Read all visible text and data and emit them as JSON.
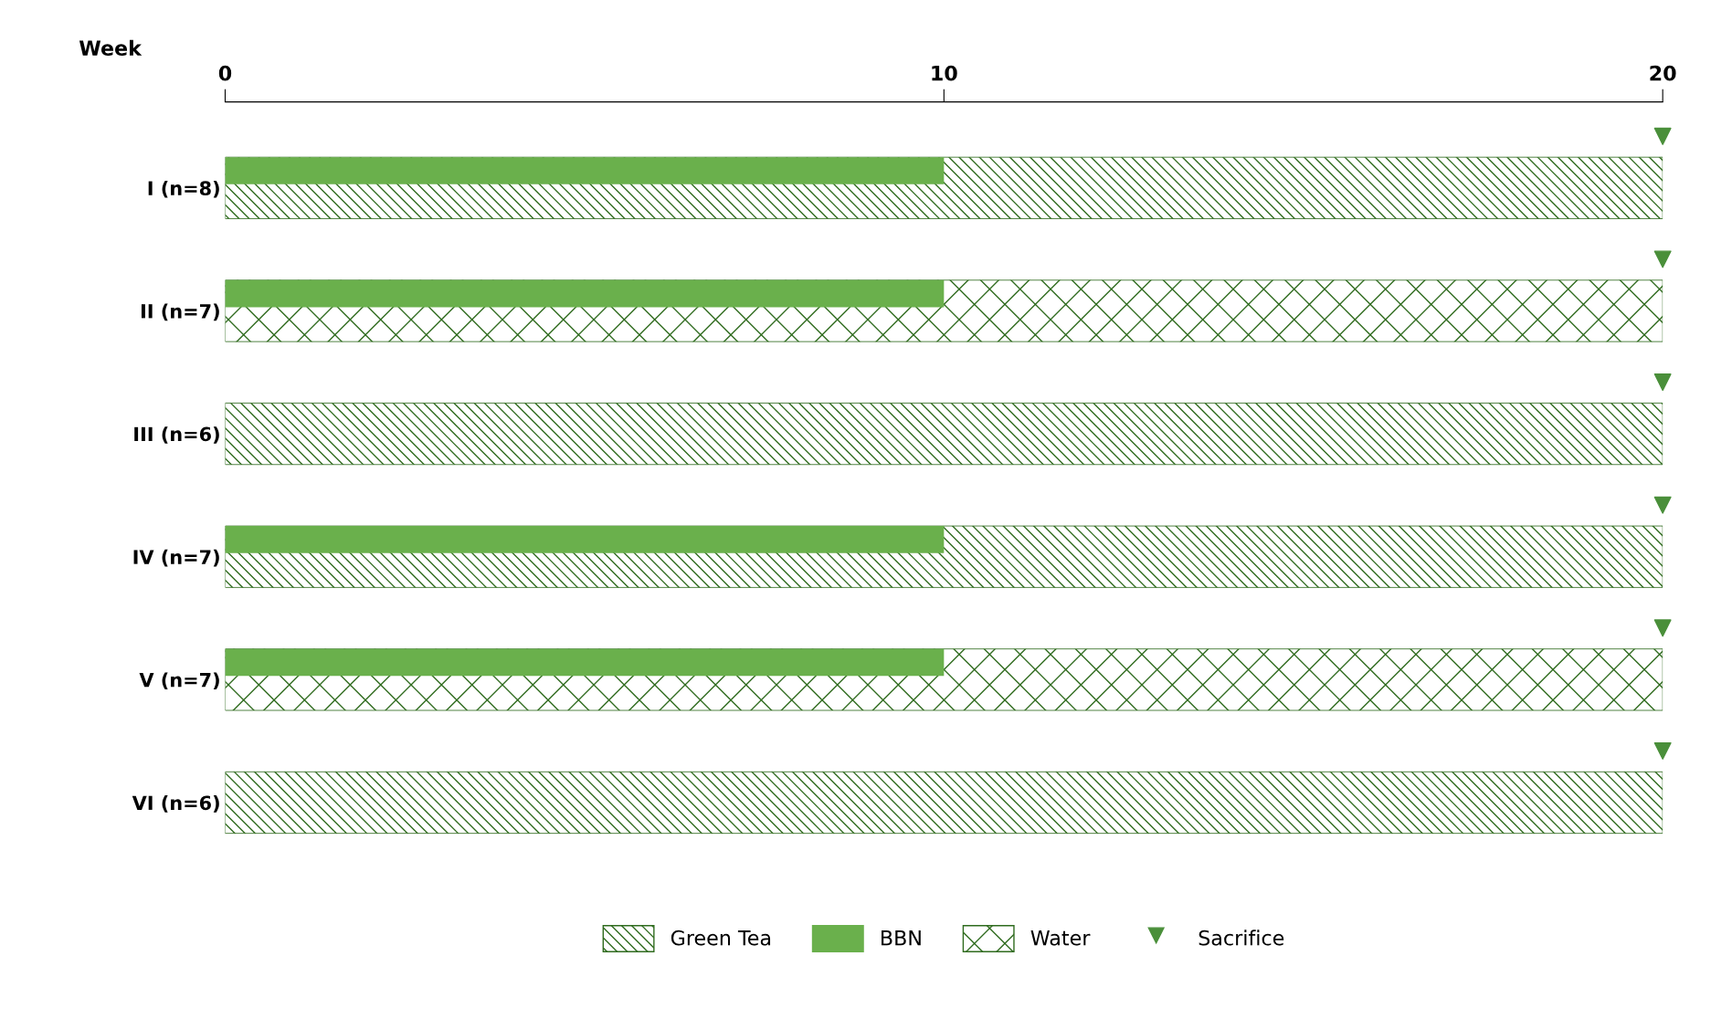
{
  "chart_data": {
    "type": "bar",
    "orientation": "horizontal",
    "xlabel": "Week",
    "categories": [
      "I (n=8)",
      "II (n=7)",
      "III (n=6)",
      "IV (n=7)",
      "V (n=7)",
      "VI (n=6)"
    ],
    "xlim": [
      0,
      20
    ],
    "xticks": [
      0,
      10,
      20
    ],
    "legend": "bottom",
    "grid": false,
    "series": [
      {
        "name": "Green Tea",
        "color": "#2f6b1e",
        "values": [
          20,
          null,
          20,
          20,
          null,
          20
        ]
      },
      {
        "name": "BBN",
        "color": "#6ab04c",
        "values": [
          10,
          10,
          null,
          10,
          10,
          null
        ]
      },
      {
        "name": "Water",
        "color": "#2f6b1e",
        "values": [
          null,
          20,
          null,
          null,
          20,
          null
        ]
      },
      {
        "name": "Sacrifice",
        "type": "scatter",
        "color": "#4a8f3a",
        "marker": "triangle",
        "values": [
          20,
          20,
          20,
          20,
          20,
          20
        ]
      }
    ]
  }
}
